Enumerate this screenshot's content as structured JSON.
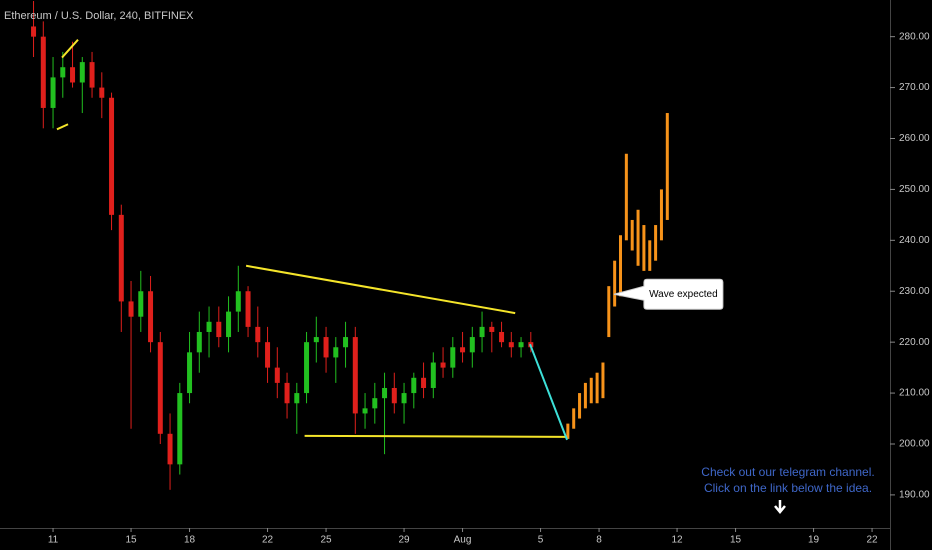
{
  "chart_data": {
    "type": "candlestick",
    "title": "Ethereum / U.S. Dollar, 240, BITFINEX",
    "up_color": "#22c020",
    "down_color": "#e0201c",
    "x": [
      0,
      0.5,
      1,
      1.5,
      2,
      2.5,
      3,
      3.5,
      4,
      4.5,
      5,
      5.5,
      6,
      6.5,
      7,
      7.5,
      8,
      8.5,
      9,
      9.5,
      10,
      10.5,
      11,
      11.5,
      12,
      12.5,
      13,
      13.5,
      14,
      14.5,
      15,
      15.5,
      16,
      16.5,
      17,
      17.5,
      18,
      18.5,
      19,
      19.5,
      20,
      20.5,
      21,
      21.5,
      22,
      22.5,
      23,
      23.5,
      24,
      24.5,
      25,
      25.5
    ],
    "open": [
      282,
      280,
      266,
      272,
      274,
      271,
      275,
      270,
      268,
      245,
      228,
      225,
      230,
      220,
      202,
      196,
      210,
      218,
      222,
      224,
      221,
      226,
      230,
      223,
      220,
      215,
      212,
      208,
      210,
      220,
      221,
      217,
      219,
      221,
      206,
      207,
      209,
      211,
      208,
      210,
      213,
      211,
      216,
      215,
      219,
      218,
      221,
      223,
      222,
      220,
      219,
      220
    ],
    "high": [
      287,
      283,
      276,
      277,
      279,
      276,
      277,
      273,
      269,
      247,
      232,
      234,
      233,
      222,
      206,
      212,
      222,
      226,
      227,
      227,
      229,
      235,
      231,
      227,
      223,
      219,
      214,
      212,
      222,
      225,
      223,
      221,
      224,
      223,
      210,
      212,
      214,
      214,
      212,
      214,
      216,
      218,
      219,
      221,
      222,
      223,
      226,
      224,
      224,
      222,
      221,
      222
    ],
    "low": [
      276,
      262,
      262,
      268,
      270,
      265,
      268,
      264,
      242,
      222,
      203,
      222,
      218,
      200,
      191,
      194,
      208,
      214,
      217,
      219,
      218,
      222,
      221,
      217,
      212,
      209,
      205,
      202,
      208,
      216,
      214,
      212,
      215,
      202,
      203,
      204,
      198,
      206,
      204,
      207,
      209,
      209,
      213,
      213,
      216,
      215,
      218,
      218,
      219,
      217,
      217,
      218
    ],
    "close": [
      280,
      266,
      272,
      274,
      271,
      275,
      270,
      268,
      245,
      228,
      225,
      230,
      220,
      202,
      196,
      210,
      218,
      222,
      224,
      221,
      226,
      230,
      223,
      220,
      215,
      212,
      208,
      210,
      220,
      221,
      217,
      219,
      221,
      206,
      207,
      209,
      211,
      208,
      210,
      213,
      211,
      216,
      215,
      219,
      218,
      221,
      223,
      222,
      220,
      219,
      220,
      219
    ],
    "projection": {
      "color": "#f7931a",
      "x": [
        27.4,
        27.7,
        28.0,
        28.3,
        28.6,
        28.9,
        29.2,
        29.5,
        29.8,
        30.1,
        30.4,
        30.7,
        31.0,
        31.3,
        31.6,
        31.9,
        32.2,
        32.5
      ],
      "low": [
        201,
        203,
        205,
        207,
        208,
        208,
        209,
        221,
        227,
        229,
        240,
        238,
        235,
        234,
        234,
        236,
        240,
        244
      ],
      "high": [
        204,
        207,
        210,
        212,
        213,
        214,
        216,
        231,
        236,
        241,
        257,
        244,
        246,
        243,
        240,
        243,
        250,
        265
      ]
    },
    "trendlines": [
      {
        "color": "#f5e52a",
        "x": [
          10.9,
          24.7
        ],
        "y": [
          235,
          225.7
        ]
      },
      {
        "color": "#f5e52a",
        "x": [
          13.9,
          27.3
        ],
        "y": [
          201.6,
          201.4
        ]
      },
      {
        "color": "#3de0d8",
        "x": [
          25.46,
          27.36
        ],
        "y": [
          219.6,
          200.8
        ]
      },
      {
        "color": "#f5e52a",
        "x": [
          1.46,
          2.28
        ],
        "y": [
          275.9,
          279.4
        ]
      },
      {
        "color": "#f5e52a",
        "x": [
          1.2,
          1.77
        ],
        "y": [
          261.8,
          262.8
        ]
      }
    ],
    "callout": {
      "text": "Wave expected",
      "x": 31.3,
      "y": 229.4
    },
    "promo_text": [
      "Check out our telegram channel.",
      "Click on the link below the idea."
    ],
    "promo_color": "#3f67c9",
    "xlim": [
      -1.72,
      43.92
    ],
    "ylim": [
      183.5,
      287.2
    ],
    "xticks": [
      {
        "value": 1,
        "label": "11"
      },
      {
        "value": 5,
        "label": "15"
      },
      {
        "value": 8,
        "label": "18"
      },
      {
        "value": 12,
        "label": "22"
      },
      {
        "value": 15,
        "label": "25"
      },
      {
        "value": 19,
        "label": "29"
      },
      {
        "value": 22,
        "label": "Aug"
      },
      {
        "value": 26,
        "label": "5"
      },
      {
        "value": 29,
        "label": "8"
      },
      {
        "value": 33,
        "label": "12"
      },
      {
        "value": 36,
        "label": "15"
      },
      {
        "value": 40,
        "label": "19"
      },
      {
        "value": 43,
        "label": "22"
      }
    ],
    "yticks": [
      {
        "value": 190,
        "label": "190.00"
      },
      {
        "value": 200,
        "label": "200.00"
      },
      {
        "value": 210,
        "label": "210.00"
      },
      {
        "value": 220,
        "label": "220.00"
      },
      {
        "value": 230,
        "label": "230.00"
      },
      {
        "value": 240,
        "label": "240.00"
      },
      {
        "value": 250,
        "label": "250.00"
      },
      {
        "value": 260,
        "label": "260.00"
      },
      {
        "value": 270,
        "label": "270.00"
      },
      {
        "value": 280,
        "label": "280.00"
      }
    ]
  }
}
